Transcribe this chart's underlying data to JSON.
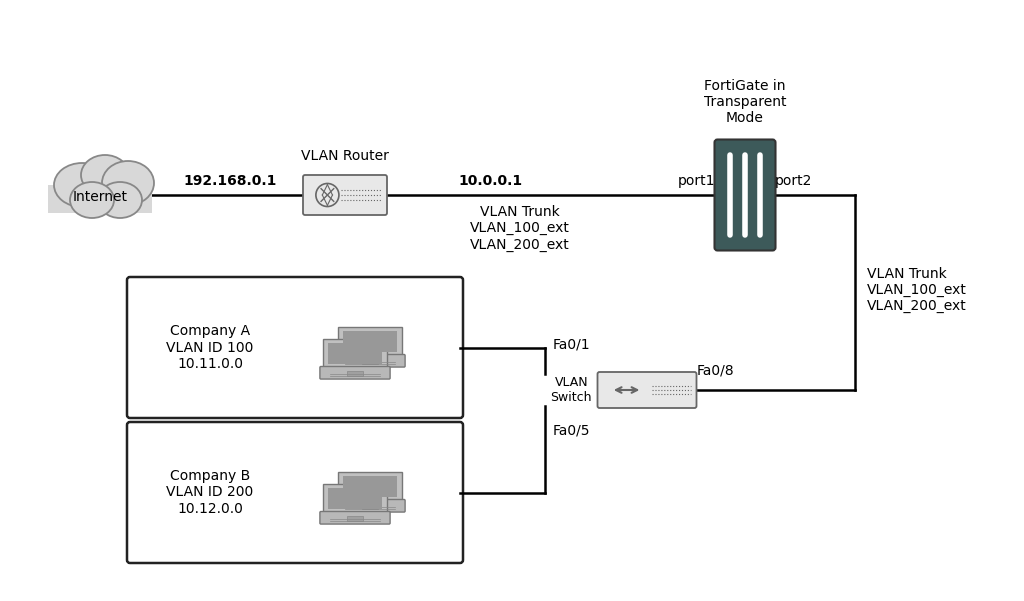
{
  "bg_color": "#ffffff",
  "fig_width": 10.24,
  "fig_height": 6.01,
  "fortigate_color": "#3d5a5a",
  "cloud_face": "#d8d8d8",
  "cloud_edge": "#888888",
  "router_face": "#e8e8e8",
  "router_edge": "#666666",
  "switch_face": "#e8e8e8",
  "switch_edge": "#666666",
  "laptop_body": "#bbbbbb",
  "laptop_screen": "#999999",
  "laptop_screen_inner": "#888888",
  "laptop_base": "#aaaaaa",
  "box_edge": "#222222",
  "internet_label": "Internet",
  "router_label": "VLAN Router",
  "fortigate_label": "FortiGate in\nTransparent\nMode",
  "switch_label": "VLAN\nSwitch",
  "company_a_label": "Company A\nVLAN ID 100\n10.11.0.0",
  "company_b_label": "Company B\nVLAN ID 200\n10.12.0.0",
  "ip_left": "192.168.0.1",
  "ip_right": "10.0.0.1",
  "port1_label": "port1",
  "port2_label": "port2",
  "fa01_label": "Fa0/1",
  "fa08_label": "Fa0/8",
  "fa05_label": "Fa0/5",
  "vlan_trunk_mid": [
    "VLAN Trunk",
    "VLAN_100_ext",
    "VLAN_200_ext"
  ],
  "vlan_trunk_right": [
    "VLAN Trunk",
    "VLAN_100_ext",
    "VLAN_200_ext"
  ],
  "line_color": "#000000",
  "text_color": "#000000"
}
